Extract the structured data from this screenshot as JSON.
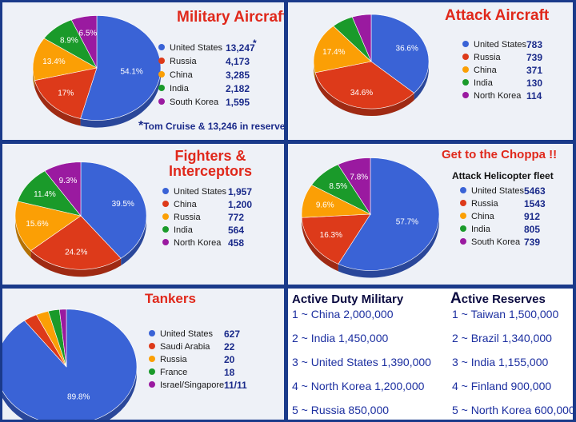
{
  "panels": {
    "military": {
      "title": "Military Aircraft",
      "note_star": "*",
      "note": "Tom Cruise & 13,246 in reserve",
      "value_star": "*"
    },
    "attack": {
      "title": "Attack Aircraft"
    },
    "fighters": {
      "title_line1": "Fighters &",
      "title_line2": "Interceptors"
    },
    "choppa": {
      "title": "Get to the Choppa !!",
      "subtitle": "Attack Helicopter fleet"
    },
    "tankers": {
      "title": "Tankers"
    }
  },
  "chart_data": [
    {
      "type": "pie",
      "title": "Military Aircraft",
      "series": [
        {
          "name": "United States",
          "value": 13247,
          "value_label": "13,247",
          "pct_label": "54.1%",
          "color": "#3a63d6"
        },
        {
          "name": "Russia",
          "value": 4173,
          "value_label": "4,173",
          "pct_label": "17%",
          "color": "#dd3a1a"
        },
        {
          "name": "China",
          "value": 3285,
          "value_label": "3,285",
          "pct_label": "13.4%",
          "color": "#fb9f05"
        },
        {
          "name": "India",
          "value": 2182,
          "value_label": "2,182",
          "pct_label": "8.9%",
          "color": "#1a9a2a"
        },
        {
          "name": "South Korea",
          "value": 1595,
          "value_label": "1,595",
          "pct_label": "6.5%",
          "color": "#9a1aa0"
        }
      ]
    },
    {
      "type": "pie",
      "title": "Attack Aircraft",
      "series": [
        {
          "name": "United States",
          "value": 783,
          "value_label": "783",
          "pct_label": "36.6%",
          "color": "#3a63d6"
        },
        {
          "name": "Russia",
          "value": 739,
          "value_label": "739",
          "pct_label": "34.6%",
          "color": "#dd3a1a"
        },
        {
          "name": "China",
          "value": 371,
          "value_label": "371",
          "pct_label": "17.4%",
          "color": "#fb9f05"
        },
        {
          "name": "India",
          "value": 130,
          "value_label": "130",
          "pct_label": "",
          "color": "#1a9a2a"
        },
        {
          "name": "North Korea",
          "value": 114,
          "value_label": "114",
          "pct_label": "",
          "color": "#9a1aa0"
        }
      ]
    },
    {
      "type": "pie",
      "title": "Fighters & Interceptors",
      "series": [
        {
          "name": "United States",
          "value": 1957,
          "value_label": "1,957",
          "pct_label": "39.5%",
          "color": "#3a63d6"
        },
        {
          "name": "China",
          "value": 1200,
          "value_label": "1,200",
          "pct_label": "24.2%",
          "color": "#dd3a1a"
        },
        {
          "name": "Russia",
          "value": 772,
          "value_label": "772",
          "pct_label": "15.6%",
          "color": "#fb9f05"
        },
        {
          "name": "India",
          "value": 564,
          "value_label": "564",
          "pct_label": "11.4%",
          "color": "#1a9a2a"
        },
        {
          "name": "North Korea",
          "value": 458,
          "value_label": "458",
          "pct_label": "9.3%",
          "color": "#9a1aa0"
        }
      ]
    },
    {
      "type": "pie",
      "title": "Get to the Choppa !!",
      "subtitle": "Attack Helicopter fleet",
      "series": [
        {
          "name": "United States",
          "value": 5463,
          "value_label": "5463",
          "pct_label": "57.7%",
          "color": "#3a63d6"
        },
        {
          "name": "Russia",
          "value": 1543,
          "value_label": "1543",
          "pct_label": "16.3%",
          "color": "#dd3a1a"
        },
        {
          "name": "China",
          "value": 912,
          "value_label": "912",
          "pct_label": "9.6%",
          "color": "#fb9f05"
        },
        {
          "name": "India",
          "value": 805,
          "value_label": "805",
          "pct_label": "8.5%",
          "color": "#1a9a2a"
        },
        {
          "name": "South Korea",
          "value": 739,
          "value_label": "739",
          "pct_label": "7.8%",
          "color": "#9a1aa0"
        }
      ]
    },
    {
      "type": "pie",
      "title": "Tankers",
      "series": [
        {
          "name": "United States",
          "value": 627,
          "value_label": "627",
          "pct_label": "89.8%",
          "color": "#3a63d6"
        },
        {
          "name": "Saudi Arabia",
          "value": 22,
          "value_label": "22",
          "pct_label": "",
          "color": "#dd3a1a"
        },
        {
          "name": "Russia",
          "value": 20,
          "value_label": "20",
          "pct_label": "",
          "color": "#fb9f05"
        },
        {
          "name": "France",
          "value": 18,
          "value_label": "18",
          "pct_label": "",
          "color": "#1a9a2a"
        },
        {
          "name": "Israel/Singapore",
          "value": 11,
          "value_label": "11/11",
          "pct_label": "",
          "color": "#9a1aa0"
        }
      ]
    }
  ],
  "rankings": {
    "active_duty": {
      "heading": "Active Duty Military",
      "items": [
        "1 ~ China 2,000,000",
        "2 ~ India 1,450,000",
        "3 ~ United States 1,390,000",
        "4 ~ North Korea 1,200,000",
        "5 ~ Russia 850,000"
      ]
    },
    "active_reserves": {
      "heading_first": "A",
      "heading_rest": "ctive Reserves",
      "items": [
        "1 ~ Taiwan 1,500,000",
        "2 ~ Brazil 1,340,000",
        "3 ~ India 1,155,000",
        "4 ~ Finland 900,000",
        "5 ~ North Korea 600,000"
      ]
    }
  }
}
